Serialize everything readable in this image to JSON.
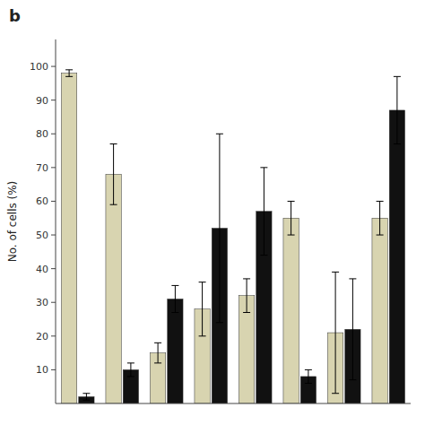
{
  "chart_data": {
    "type": "bar",
    "title": "b",
    "ylabel": "No. of cells (%)",
    "categories": [
      null,
      null,
      null,
      null,
      null,
      null,
      null,
      null
    ],
    "series": [
      {
        "color": "#d8d4b0",
        "values": [
          98,
          68,
          15,
          28,
          32,
          55,
          21,
          55
        ],
        "errors": [
          1,
          9,
          3,
          8,
          5,
          5,
          18,
          5
        ]
      },
      {
        "color": "#111111",
        "values": [
          2,
          10,
          31,
          52,
          57,
          8,
          22,
          87
        ],
        "errors": [
          1,
          2,
          4,
          28,
          13,
          2,
          15,
          10
        ]
      }
    ],
    "ylim": [
      0,
      108
    ],
    "yticks": [
      10,
      20,
      30,
      40,
      50,
      60,
      70,
      80,
      90,
      100
    ],
    "grid": false,
    "tick_labels": "y"
  }
}
